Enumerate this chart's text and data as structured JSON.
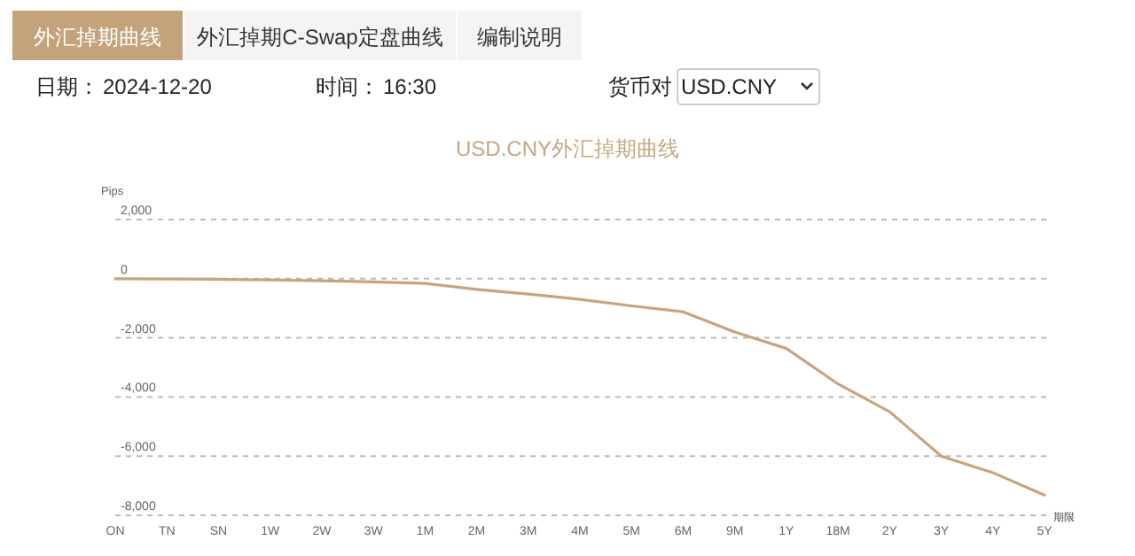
{
  "chart_data": {
    "type": "line",
    "title": "USD.CNY外汇掉期曲线",
    "xlabel": "期限",
    "ylabel": "Pips",
    "categories": [
      "ON",
      "TN",
      "SN",
      "1W",
      "2W",
      "3W",
      "1M",
      "2M",
      "3M",
      "4M",
      "5M",
      "6M",
      "9M",
      "1Y",
      "18M",
      "2Y",
      "3Y",
      "4Y",
      "5Y"
    ],
    "series": [
      {
        "color": "#c8a47e",
        "values": [
          0,
          -10,
          -20,
          -40,
          -70,
          -110,
          -160,
          -360,
          -520,
          -700,
          -920,
          -1120,
          -1800,
          -2360,
          -3560,
          -4500,
          -6000,
          -6560,
          -7320
        ]
      }
    ],
    "ylim": [
      -8000,
      2000
    ],
    "yticks": [
      {
        "value": 2000,
        "label": "2,000"
      },
      0,
      {
        "value": -2000,
        "label": "-2,000"
      },
      {
        "value": -4000,
        "label": "-4,000"
      },
      {
        "value": -6000,
        "label": "-6,000"
      },
      {
        "value": -8000,
        "label": "-8,000"
      }
    ],
    "grid": "y",
    "marker": "none",
    "line_style": "solid",
    "annotations": [
      "外汇掉期曲线",
      "外汇掉期C-Swap定盘曲线",
      "编制说明",
      "日期：",
      "2024-12-20",
      "时间：",
      "16:30",
      "货币对",
      "USD.CNY"
    ]
  }
}
